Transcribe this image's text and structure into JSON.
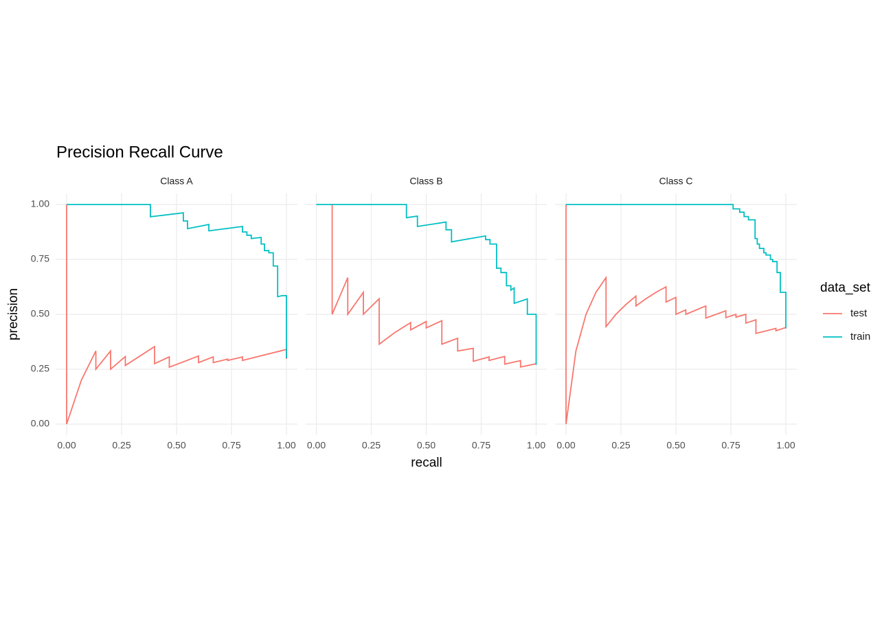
{
  "chart_data": {
    "type": "line",
    "title": "Precision Recall Curve",
    "x_label": "recall",
    "y_label": "precision",
    "legend_title": "data_set",
    "series": [
      {
        "name": "test",
        "color": "#f8766d"
      },
      {
        "name": "train",
        "color": "#00bfc4"
      }
    ],
    "xlim": [
      0,
      1
    ],
    "ylim": [
      0,
      1
    ],
    "xticks": [
      {
        "value": 0,
        "label": "0.00"
      },
      {
        "value": 0.25,
        "label": "0.25"
      },
      {
        "value": 0.5,
        "label": "0.50"
      },
      {
        "value": 0.75,
        "label": "0.75"
      },
      {
        "value": 1,
        "label": "1.00"
      }
    ],
    "yticks": [
      {
        "value": 0,
        "label": "0.00"
      },
      {
        "value": 0.25,
        "label": "0.25"
      },
      {
        "value": 0.5,
        "label": "0.50"
      },
      {
        "value": 0.75,
        "label": "0.75"
      },
      {
        "value": 1,
        "label": "1.00"
      }
    ],
    "grid": true,
    "panels": [
      {
        "title": "Class A",
        "lines": [
          {
            "x": [
              0,
              0,
              0.067,
              0.133,
              0.133,
              0.2,
              0.2,
              0.267,
              0.267,
              0.4,
              0.4,
              0.467,
              0.467,
              0.6,
              0.6,
              0.667,
              0.667,
              0.733,
              0.733,
              0.8,
              0.8,
              1,
              1
            ],
            "values": [
              1,
              0,
              0.2,
              0.333,
              0.25,
              0.333,
              0.25,
              0.308,
              0.267,
              0.353,
              0.275,
              0.306,
              0.259,
              0.31,
              0.28,
              0.306,
              0.28,
              0.296,
              0.29,
              0.306,
              0.29,
              0.34,
              0.297
            ]
          },
          {
            "x": [
              0,
              0.381,
              0.381,
              0.531,
              0.531,
              0.55,
              0.55,
              0.647,
              0.647,
              0.8,
              0.8,
              0.82,
              0.82,
              0.84,
              0.84,
              0.885,
              0.885,
              0.9,
              0.9,
              0.92,
              0.92,
              0.94,
              0.94,
              0.96,
              0.96,
              0.98,
              1,
              1
            ],
            "values": [
              1,
              1,
              0.944,
              0.962,
              0.925,
              0.925,
              0.89,
              0.909,
              0.88,
              0.9,
              0.875,
              0.875,
              0.86,
              0.86,
              0.845,
              0.85,
              0.82,
              0.82,
              0.79,
              0.79,
              0.78,
              0.78,
              0.72,
              0.72,
              0.58,
              0.585,
              0.585,
              0.3
            ]
          }
        ]
      },
      {
        "title": "Class B",
        "lines": [
          {
            "x": [
              0.072,
              0.072,
              0.143,
              0.143,
              0.214,
              0.214,
              0.286,
              0.286,
              0.357,
              0.429,
              0.429,
              0.5,
              0.5,
              0.571,
              0.571,
              0.643,
              0.643,
              0.714,
              0.714,
              0.786,
              0.786,
              0.857,
              0.857,
              0.929,
              0.929,
              1
            ],
            "values": [
              1,
              0.5,
              0.667,
              0.5,
              0.6,
              0.5,
              0.571,
              0.364,
              0.417,
              0.462,
              0.429,
              0.467,
              0.438,
              0.471,
              0.364,
              0.391,
              0.333,
              0.345,
              0.286,
              0.306,
              0.29,
              0.308,
              0.273,
              0.289,
              0.26,
              0.275
            ]
          },
          {
            "x": [
              0,
              0.41,
              0.41,
              0.46,
              0.46,
              0.59,
              0.59,
              0.615,
              0.615,
              0.77,
              0.77,
              0.79,
              0.79,
              0.82,
              0.82,
              0.84,
              0.84,
              0.865,
              0.865,
              0.885,
              0.885,
              0.9,
              0.9,
              0.96,
              0.96,
              0.99,
              1,
              1
            ],
            "values": [
              1,
              1,
              0.94,
              0.947,
              0.9,
              0.92,
              0.885,
              0.885,
              0.83,
              0.857,
              0.84,
              0.84,
              0.82,
              0.82,
              0.71,
              0.71,
              0.69,
              0.69,
              0.63,
              0.63,
              0.61,
              0.62,
              0.55,
              0.57,
              0.5,
              0.5,
              0.5,
              0.27
            ]
          }
        ]
      },
      {
        "title": "Class C",
        "lines": [
          {
            "x": [
              0,
              0,
              0.045,
              0.091,
              0.136,
              0.182,
              0.182,
              0.227,
              0.273,
              0.318,
              0.318,
              0.364,
              0.409,
              0.455,
              0.455,
              0.5,
              0.5,
              0.545,
              0.545,
              0.636,
              0.636,
              0.727,
              0.727,
              0.773,
              0.773,
              0.818,
              0.818,
              0.864,
              0.864,
              0.955,
              0.955,
              1
            ],
            "values": [
              1,
              0,
              0.333,
              0.5,
              0.6,
              0.667,
              0.444,
              0.5,
              0.545,
              0.583,
              0.538,
              0.571,
              0.6,
              0.625,
              0.556,
              0.577,
              0.5,
              0.52,
              0.5,
              0.538,
              0.483,
              0.516,
              0.485,
              0.5,
              0.487,
              0.5,
              0.46,
              0.475,
              0.413,
              0.436,
              0.425,
              0.44
            ]
          },
          {
            "x": [
              0,
              0.76,
              0.76,
              0.79,
              0.79,
              0.81,
              0.81,
              0.83,
              0.83,
              0.86,
              0.86,
              0.87,
              0.87,
              0.88,
              0.88,
              0.9,
              0.9,
              0.91,
              0.91,
              0.93,
              0.93,
              0.94,
              0.94,
              0.96,
              0.96,
              0.975,
              0.975,
              1,
              1
            ],
            "values": [
              1,
              1,
              0.98,
              0.98,
              0.965,
              0.965,
              0.945,
              0.945,
              0.93,
              0.93,
              0.845,
              0.845,
              0.82,
              0.82,
              0.8,
              0.8,
              0.78,
              0.78,
              0.77,
              0.77,
              0.75,
              0.75,
              0.74,
              0.74,
              0.69,
              0.69,
              0.6,
              0.6,
              0.435
            ]
          }
        ]
      }
    ]
  }
}
